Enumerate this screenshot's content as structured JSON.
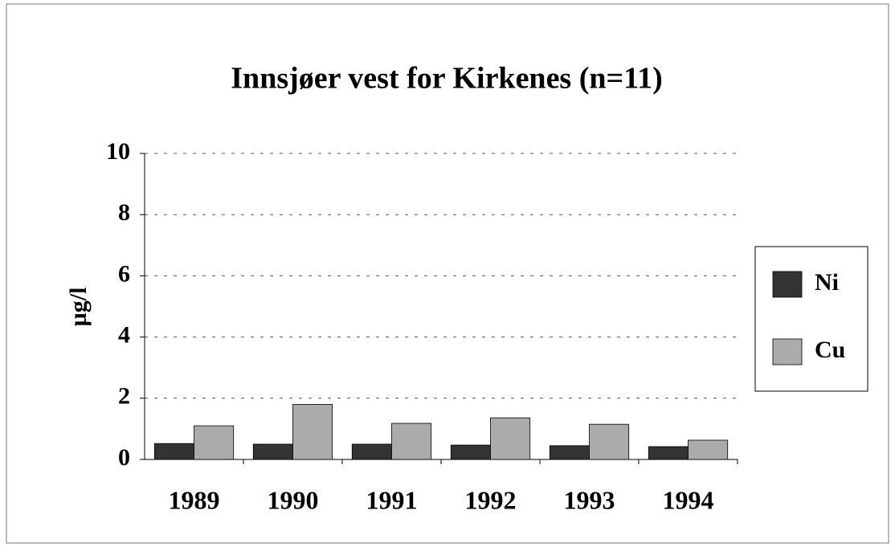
{
  "chart_data": {
    "type": "bar",
    "title": "Innsjøer vest for Kirkenes (n=11)",
    "y_label": "µg/l",
    "categories": [
      "1989",
      "1990",
      "1991",
      "1992",
      "1993",
      "1994"
    ],
    "series": [
      {
        "name": "Ni",
        "color": "#333333",
        "values": [
          0.52,
          0.5,
          0.5,
          0.47,
          0.45,
          0.42
        ]
      },
      {
        "name": "Cu",
        "color": "#ababab",
        "values": [
          1.1,
          1.8,
          1.18,
          1.36,
          1.15,
          0.63
        ]
      }
    ],
    "ylim": [
      0,
      10
    ],
    "yticks": [
      0,
      2,
      4,
      6,
      8,
      10
    ],
    "grid": true,
    "legend": "right"
  }
}
